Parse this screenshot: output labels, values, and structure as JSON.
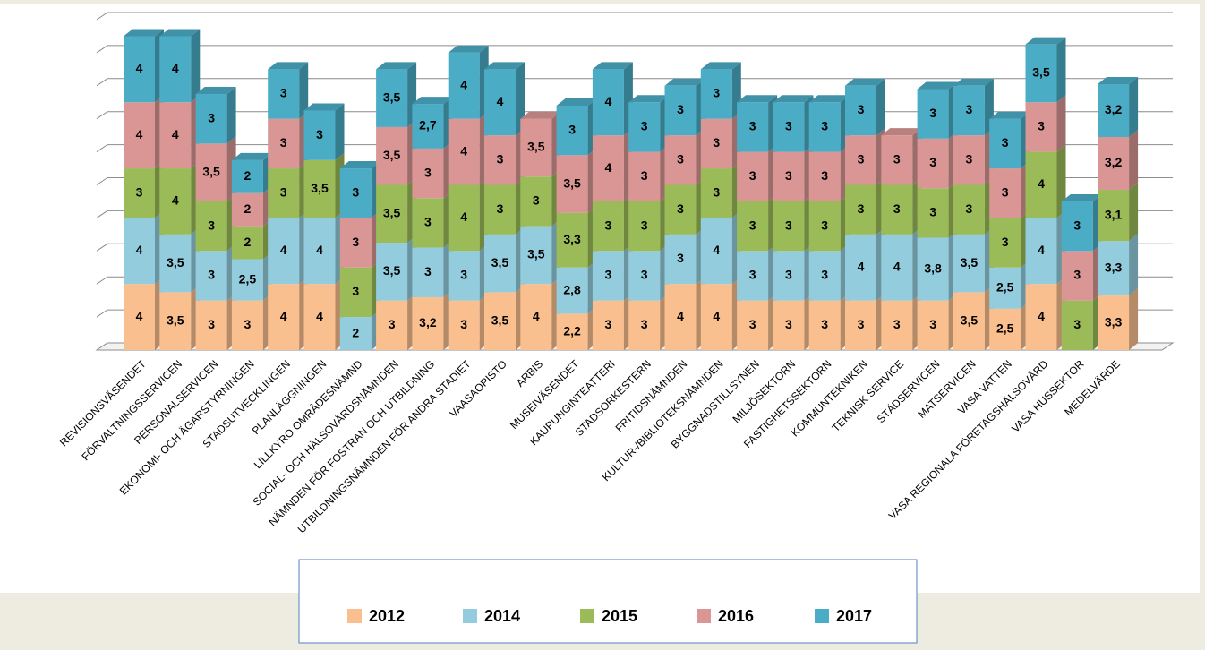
{
  "chart_data": {
    "type": "stacked-bar-3d",
    "categories": [
      "REVISIONSVÄSENDET",
      "FÖRVALTNINGSSERVICEN",
      "PERSONALSERVICEN",
      "EKONOMI- OCH ÄGARSTYRNINGEN",
      "STADSUTVECKLINGEN",
      "PLANLÄGGNINGEN",
      "LILLKYRO OMRÅDESNÄMND",
      "SOCIAL- OCH HÄLSOVÅRDSNÄMNDEN",
      "NÄMNDEN FÖR FOSTRAN OCH UTBILDNING",
      "UTBILDNINGSNÄMNDEN FÖR ANDRA STADIET",
      "VAASAOPISTO",
      "ARBIS",
      "MUSEIVÄSENDET",
      "KAUPUNGINTEATTERI",
      "STADSORKESTERN",
      "FRITIDSNÄMNDEN",
      "KULTUR-/BIBLIOTEKSNÄMNDEN",
      "BYGGNADSTILLSYNEN",
      "MILJÖSEKTORN",
      "FASTIGHETSSEKTORN",
      "KOMMUNTEKNIKEN",
      "TEKNISK SERVICE",
      "STÄDSERVICEN",
      "MATSERVICEN",
      "VASA VATTEN",
      "VASA REGIONALA FÖRETAGSHÄLSOVÅRD",
      "VASA HUSSEKTOR",
      "MEDELVÄRDE"
    ],
    "series": [
      {
        "name": "2012",
        "color": "#fabf8f",
        "values": [
          4,
          3.5,
          3,
          3,
          4,
          4,
          null,
          3,
          3.2,
          3,
          3.5,
          4,
          2.2,
          3,
          3,
          4,
          4,
          3,
          3,
          3,
          3,
          3,
          3,
          3.5,
          2.5,
          4,
          null,
          3.3
        ],
        "value_labels": [
          "4",
          "3,5",
          "3",
          "3",
          "4",
          "4",
          null,
          "3",
          "3,2",
          "3",
          "3,5",
          "4",
          "2,2",
          "3",
          "3",
          "4",
          "4",
          "3",
          "3",
          "3",
          "3",
          "3",
          "3",
          "3,5",
          "2,5",
          "4",
          null,
          "3,3"
        ]
      },
      {
        "name": "2014",
        "color": "#93cddd",
        "values": [
          4,
          3.5,
          3,
          2.5,
          4,
          4,
          2,
          3.5,
          3,
          3,
          3.5,
          3.5,
          2.8,
          3,
          3,
          3,
          4,
          3,
          3,
          3,
          4,
          4,
          3.8,
          3.5,
          2.5,
          4,
          null,
          3.3
        ],
        "value_labels": [
          "4",
          "3,5",
          "3",
          "2,5",
          "4",
          "4",
          "2",
          "3,5",
          "3",
          "3",
          "3,5",
          "3,5",
          "2,8",
          "3",
          "3",
          "3",
          "4",
          "3",
          "3",
          "3",
          "4",
          "4",
          "3,8",
          "3,5",
          "2,5",
          "4",
          null,
          "3,3"
        ]
      },
      {
        "name": "2015",
        "color": "#9bbb59",
        "values": [
          3,
          4,
          3,
          2,
          3,
          3.5,
          3,
          3.5,
          3,
          4,
          3,
          3,
          3.3,
          3,
          3,
          3,
          3,
          3,
          3,
          3,
          3,
          3,
          3,
          3,
          3,
          4,
          3,
          3.1
        ],
        "value_labels": [
          "3",
          "4",
          "3",
          "2",
          "3",
          "3,5",
          "3",
          "3,5",
          "3",
          "4",
          "3",
          "3",
          "3,3",
          "3",
          "3",
          "3",
          "3",
          "3",
          "3",
          "3",
          "3",
          "3",
          "3",
          "3",
          "3",
          "4",
          "3",
          "3,1"
        ]
      },
      {
        "name": "2016",
        "color": "#d99694",
        "values": [
          4,
          4,
          3.5,
          2,
          3,
          null,
          3,
          3.5,
          3,
          4,
          3,
          3.5,
          3.5,
          4,
          3,
          3,
          3,
          3,
          3,
          3,
          3,
          3,
          3,
          3,
          3,
          3,
          3,
          3.2
        ],
        "value_labels": [
          "4",
          "4",
          "3,5",
          "2",
          "3",
          null,
          "3",
          "3,5",
          "3",
          "4",
          "3",
          "3,5",
          "3,5",
          "4",
          "3",
          "3",
          "3",
          "3",
          "3",
          "3",
          "3",
          "3",
          "3",
          "3",
          "3",
          "3",
          "3",
          "3,2"
        ]
      },
      {
        "name": "2017",
        "color": "#4bacc6",
        "values": [
          4,
          4,
          3,
          2,
          3,
          3,
          3,
          3.5,
          2.7,
          4,
          4,
          null,
          3,
          4,
          3,
          3,
          3,
          3,
          3,
          3,
          3,
          null,
          3,
          3,
          3,
          3.5,
          3,
          3.2
        ],
        "value_labels": [
          "4",
          "4",
          "3",
          "2",
          "3",
          "3",
          "3",
          "3,5",
          "2,7",
          "4",
          "4",
          null,
          "3",
          "4",
          "3",
          "3",
          "3",
          "3",
          "3",
          "3",
          "3",
          null,
          "3",
          "3",
          "3",
          "3,5",
          "3",
          "3,2"
        ]
      }
    ],
    "ylim": [
      0,
      20
    ],
    "yticks": [
      0,
      2,
      4,
      6,
      8,
      10,
      12,
      14,
      16,
      18,
      20
    ],
    "grid": true,
    "legend": "bottom"
  }
}
